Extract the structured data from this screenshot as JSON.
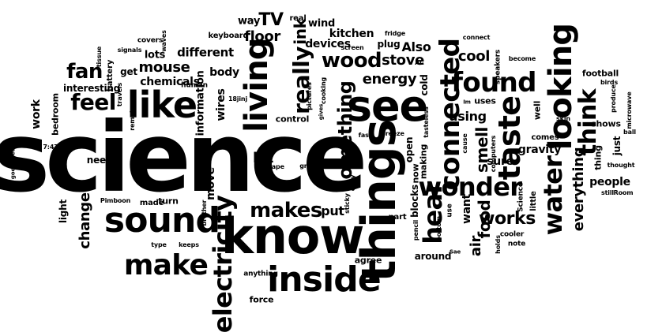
{
  "colors": {
    "text": "#000000",
    "background": "#ffffff"
  },
  "words": {
    "science": "science",
    "know": "know",
    "things": "things",
    "see": "see",
    "sound": "sound",
    "inside": "inside",
    "like": "like",
    "living": "living",
    "electricity": "electricity",
    "make": "make",
    "looking": "looking",
    "connected": "connected",
    "found": "found",
    "wonder": "wonder",
    "taste": "taste",
    "water": "water",
    "think": "think",
    "hear": "hear",
    "makes": "makes",
    "something": "something",
    "really": "really",
    "wood": "wood",
    "feel": "feel",
    "fan": "fan",
    "TV": "TV",
    "ink": "ink",
    "floor": "floor",
    "mouse": "mouse",
    "lot": "lot",
    "change": "change",
    "works": "works",
    "food": "food",
    "smell": "smell",
    "everything": "everything",
    "stove": "stove",
    "energy": "energy",
    "cool": "cool",
    "using": "using",
    "Also": "Also",
    "put": "put",
    "air": "air",
    "want": "want",
    "gravity": "gravity",
    "sure": "sure",
    "people": "people",
    "move": "move",
    "wires": "wires",
    "information": "information",
    "chemicals": "chemicals",
    "body": "body",
    "different": "different",
    "lots": "lots",
    "way": "way",
    "kitchen": "kitchen",
    "devices": "devices",
    "wind": "wind",
    "plug": "plug",
    "real": "real",
    "keyboard": "keyboard",
    "work": "work",
    "bedroom": "bedroom",
    "get": "get",
    "interesting": "interesting",
    "battery": "battery",
    "need": "need",
    "light": "light",
    "turn": "turn",
    "made": "made",
    "blocks": "blocks",
    "open": "open",
    "cold": "cold",
    "making": "making",
    "now": "now",
    "uses": "uses",
    "well": "well",
    "football": "football",
    "around": "around",
    "agree": "agree",
    "force": "force",
    "anything": "anything",
    "part": "part",
    "thing": "thing",
    "just": "just",
    "shows": "shows",
    "comes": "comes",
    "little": "little",
    "Science": "Science",
    "control": "control",
    "human": "human",
    "covers": "covers",
    "remote": "remote",
    "back": "back",
    "tape": "tape",
    "paper": "paper",
    "great": "great",
    "breeze": "breeze",
    "fast": "fast",
    "copy": "copy",
    "sticky": "sticky",
    "pencil": "pencil",
    "use": "use",
    "bottom": "bottom",
    "Sae": "Sae",
    "cooler": "cooler",
    "note": "note",
    "holds": "holds",
    "skin": "skin",
    "cause": "cause",
    "computers": "computers",
    "speakers": "speakers",
    "become": "become",
    "birds": "birds",
    "produce": "produce",
    "microwave": "microwave",
    "ball": "ball",
    "thought": "thought",
    "still": "still",
    "Room": "Room",
    "connect": "connect",
    "fridge": "fridge",
    "screen": "screen",
    "AC": "AC",
    "Im": "Im",
    "tasteless": "tasteless",
    "cooking": "cooking",
    "pictures": "pictures",
    "gives": "gives",
    "18jinj": "18jinj",
    "waves": "waves",
    "signals": "signals",
    "tissue": "tissue",
    "travels": "travels",
    "goes": "goes",
    "Teon": "Teon",
    "time": "7:47",
    "Pimboon": "Pimboon",
    "brother": "brother",
    "type": "type",
    "keeps": "keeps"
  }
}
